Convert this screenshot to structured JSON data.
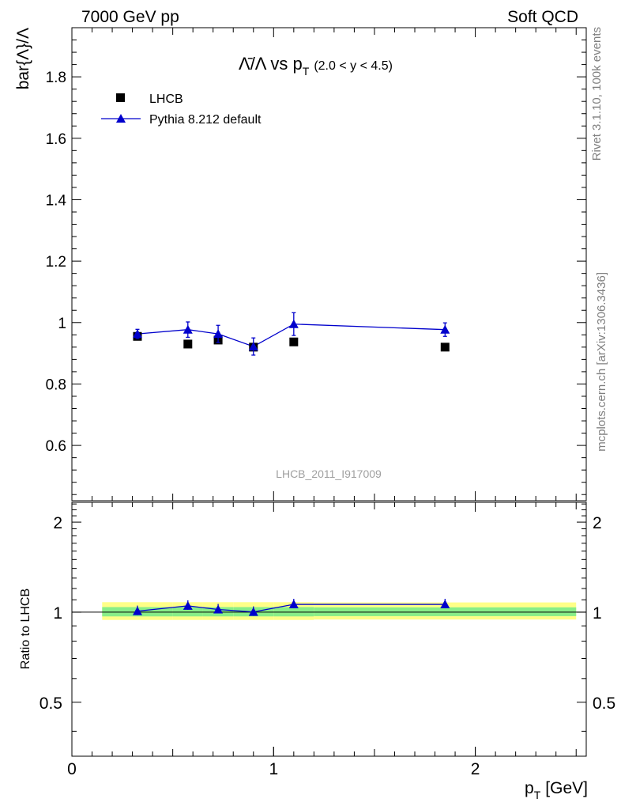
{
  "header": {
    "left": "7000 GeV pp",
    "right": "Soft QCD"
  },
  "side_labels": {
    "top": "Rivet 3.1.10,  100k events",
    "bottom": "mcplots.cern.ch [arXiv:1306.3436]"
  },
  "watermark": "LHCB_2011_I917009",
  "chart_data": [
    {
      "type": "scatter",
      "panel": "main",
      "title": {
        "symbol": "Λ̄/Λ vs p",
        "sub": "T",
        "range": "(2.0 < y < 4.5)"
      },
      "ylabel": "bar{Λ}/Λ",
      "xlim": [
        0,
        2.55
      ],
      "ylim": [
        0.42,
        1.96
      ],
      "yticks": [
        0.6,
        0.8,
        1,
        1.2,
        1.4,
        1.6,
        1.8
      ],
      "ytick_labels": [
        "0.6",
        "0.8",
        "1",
        "1.2",
        "1.4",
        "1.6",
        "1.8"
      ],
      "legend": {
        "position": "top-left",
        "entries": [
          "LHCB",
          "Pythia 8.212 default"
        ]
      },
      "series": [
        {
          "name": "LHCB",
          "marker": "square",
          "color": "#000000",
          "x": [
            0.325,
            0.575,
            0.725,
            0.9,
            1.1,
            1.85
          ],
          "y": [
            0.955,
            0.93,
            0.943,
            0.92,
            0.937,
            0.92
          ]
        },
        {
          "name": "Pythia 8.212 default",
          "marker": "triangle",
          "color": "#0000cc",
          "x": [
            0.325,
            0.575,
            0.725,
            0.9,
            1.1,
            1.85
          ],
          "y": [
            0.963,
            0.977,
            0.963,
            0.922,
            0.995,
            0.977
          ],
          "err": [
            0.015,
            0.025,
            0.028,
            0.028,
            0.037,
            0.022
          ]
        }
      ]
    },
    {
      "type": "scatter",
      "panel": "ratio",
      "ylabel": "Ratio to LHCB",
      "xlabel": "p",
      "xlabel_sub": "T",
      "xlabel_unit": "[GeV]",
      "xlim": [
        0,
        2.55
      ],
      "ylim": [
        0.33,
        2.33
      ],
      "yticks": [
        0.5,
        1,
        2
      ],
      "ytick_labels": [
        "0.5",
        "1",
        "2"
      ],
      "xticks": [
        0,
        1,
        2
      ],
      "xtick_labels": [
        "0",
        "1",
        "2"
      ],
      "bins": [
        0.15,
        0.5,
        0.65,
        0.8,
        1.0,
        1.2,
        2.5
      ],
      "band_yellow": [
        [
          0.942,
          1.08
        ],
        [
          0.942,
          1.08
        ],
        [
          0.942,
          1.08
        ],
        [
          0.942,
          1.08
        ],
        [
          0.942,
          1.08
        ],
        [
          0.945,
          1.078
        ]
      ],
      "band_green": [
        [
          0.968,
          1.04
        ],
        [
          0.968,
          1.04
        ],
        [
          0.968,
          1.04
        ],
        [
          0.968,
          1.04
        ],
        [
          0.968,
          1.04
        ],
        [
          0.97,
          1.038
        ]
      ],
      "series": [
        {
          "name": "Pythia 8.212 default",
          "color": "#0000cc",
          "x": [
            0.325,
            0.575,
            0.725,
            0.9,
            1.1,
            1.85
          ],
          "y": [
            1.008,
            1.05,
            1.021,
            1.002,
            1.062,
            1.062
          ]
        }
      ]
    }
  ]
}
